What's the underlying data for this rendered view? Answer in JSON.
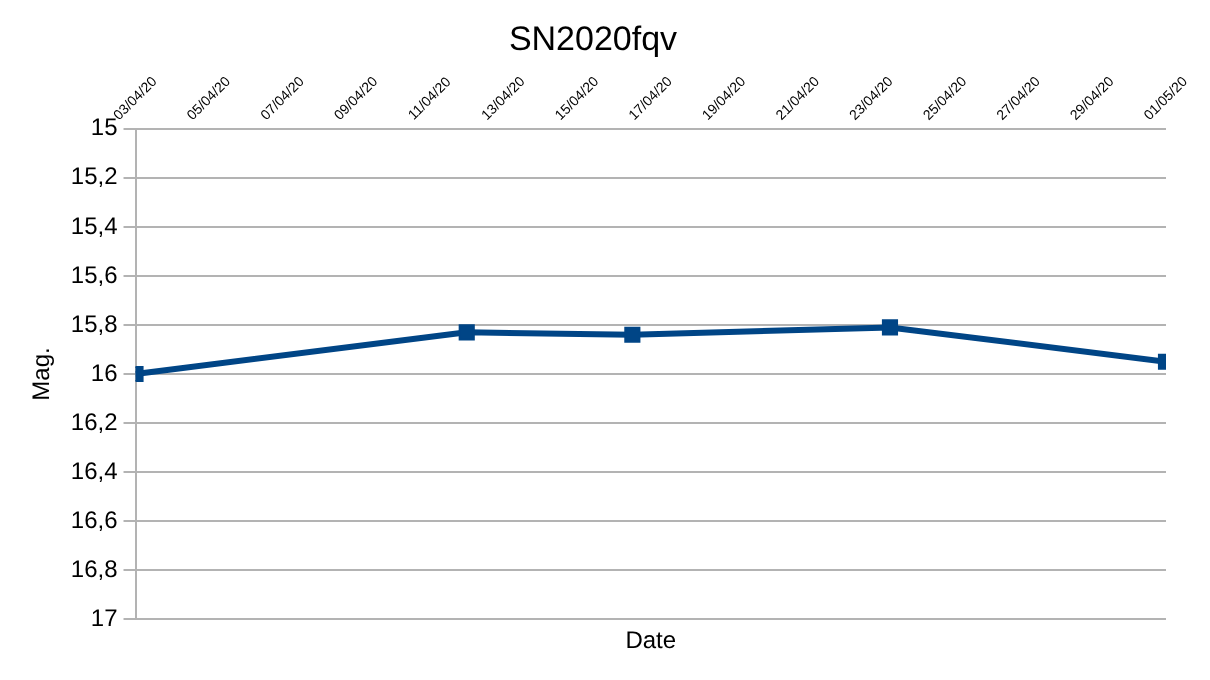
{
  "chart_data": {
    "type": "line",
    "title": "SN2020fqv",
    "xlabel": "Date",
    "ylabel": "Mag.",
    "x": [
      "2020-04-03",
      "2020-04-12",
      "2020-04-16T12:00",
      "2020-04-23T12:00",
      "2020-05-01"
    ],
    "series": [
      {
        "color": "#004586",
        "values": [
          16.0,
          15.83,
          15.84,
          15.81,
          15.95
        ]
      }
    ],
    "ylim": [
      17,
      15
    ],
    "yticks": [
      {
        "value": 15,
        "label": "15"
      },
      {
        "value": 15.2,
        "label": "15,2"
      },
      {
        "value": 15.4,
        "label": "15,4"
      },
      {
        "value": 15.6,
        "label": "15,6"
      },
      {
        "value": 15.8,
        "label": "15,8"
      },
      {
        "value": 16,
        "label": "16"
      },
      {
        "value": 16.2,
        "label": "16,2"
      },
      {
        "value": 16.4,
        "label": "16,4"
      },
      {
        "value": 16.6,
        "label": "16,6"
      },
      {
        "value": 16.8,
        "label": "16,8"
      },
      {
        "value": 17,
        "label": "17"
      }
    ],
    "xlim": [
      "2020-04-03",
      "2020-05-01"
    ],
    "xticks": [
      {
        "value": "2020-04-03",
        "label": "03/04/20"
      },
      {
        "value": "2020-04-05",
        "label": "05/04/20"
      },
      {
        "value": "2020-04-07",
        "label": "07/04/20"
      },
      {
        "value": "2020-04-09",
        "label": "09/04/20"
      },
      {
        "value": "2020-04-11",
        "label": "11/04/20"
      },
      {
        "value": "2020-04-13",
        "label": "13/04/20"
      },
      {
        "value": "2020-04-15",
        "label": "15/04/20"
      },
      {
        "value": "2020-04-17",
        "label": "17/04/20"
      },
      {
        "value": "2020-04-19",
        "label": "19/04/20"
      },
      {
        "value": "2020-04-21",
        "label": "21/04/20"
      },
      {
        "value": "2020-04-23",
        "label": "23/04/20"
      },
      {
        "value": "2020-04-25",
        "label": "25/04/20"
      },
      {
        "value": "2020-04-27",
        "label": "27/04/20"
      },
      {
        "value": "2020-04-29",
        "label": "29/04/20"
      },
      {
        "value": "2020-05-01",
        "label": "01/05/20"
      }
    ],
    "grid": "y",
    "legend": false,
    "marker": "square",
    "line_style": "solid"
  }
}
